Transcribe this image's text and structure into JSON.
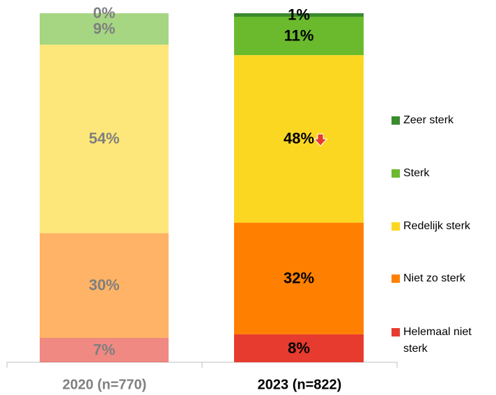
{
  "chart_data": {
    "type": "stacked_bar",
    "categories": [
      "2020 (n=770)",
      "2023 (n=822)"
    ],
    "highlight_index": 1,
    "series": [
      {
        "name": "Helemaal niet sterk",
        "color": "#e63b2e",
        "values": [
          7,
          8
        ],
        "value_labels": [
          "7%",
          "8%"
        ]
      },
      {
        "name": "Niet zo sterk",
        "color": "#ff8000",
        "values": [
          30,
          32
        ],
        "value_labels": [
          "30%",
          "32%"
        ]
      },
      {
        "name": "Redelijk sterk",
        "color": "#fcd722",
        "values": [
          54,
          48
        ],
        "value_labels": [
          "54%",
          "48%"
        ]
      },
      {
        "name": "Sterk",
        "color": "#6bba2e",
        "values": [
          9,
          11
        ],
        "value_labels": [
          "9%",
          "11%"
        ]
      },
      {
        "name": "Zeer sterk",
        "color": "#3a8a2e",
        "values": [
          0,
          1
        ],
        "value_labels": [
          "0%",
          "1%"
        ]
      }
    ],
    "ylim": [
      0,
      100
    ]
  }
}
